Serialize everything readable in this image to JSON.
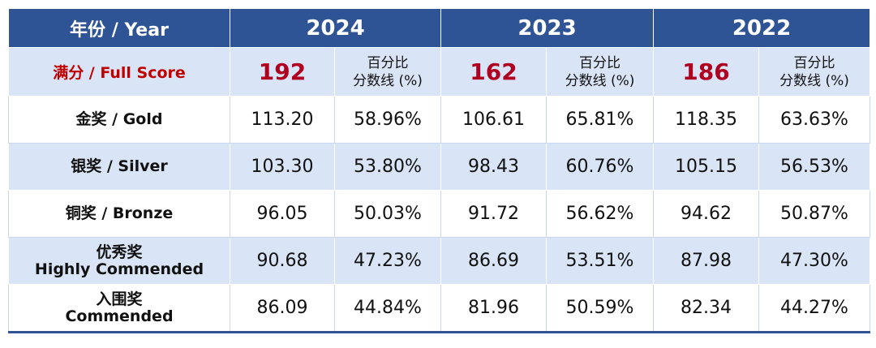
{
  "header": {
    "label": "年份 / Year",
    "years": [
      "2024",
      "2023",
      "2022"
    ]
  },
  "full_score": {
    "label": "满分 / Full Score",
    "scores": [
      "192",
      "162",
      "186"
    ],
    "pct_headers": [
      [
        "百分比",
        "分数线 (%)"
      ],
      [
        "百分比",
        "分数线 (%)"
      ],
      [
        "百分比",
        "分数线 (%)"
      ]
    ]
  },
  "rows": [
    {
      "label": [
        "金奖 / Gold"
      ],
      "cells": [
        "113.20",
        "58.96%",
        "106.61",
        "65.81%",
        "118.35",
        "63.63%"
      ]
    },
    {
      "label": [
        "银奖 / Silver"
      ],
      "cells": [
        "103.30",
        "53.80%",
        "98.43",
        "60.76%",
        "105.15",
        "56.53%"
      ]
    },
    {
      "label": [
        "铜奖 / Bronze"
      ],
      "cells": [
        "96.05",
        "50.03%",
        "91.72",
        "56.62%",
        "94.62",
        "50.87%"
      ]
    },
    {
      "label": [
        "优秀奖",
        "Highly Commended"
      ],
      "cells": [
        "90.68",
        "47.23%",
        "86.69",
        "53.51%",
        "87.98",
        "47.30%"
      ]
    },
    {
      "label": [
        "入围奖",
        "Commended"
      ],
      "cells": [
        "86.09",
        "44.84%",
        "81.96",
        "50.59%",
        "82.34",
        "44.27%"
      ]
    }
  ]
}
